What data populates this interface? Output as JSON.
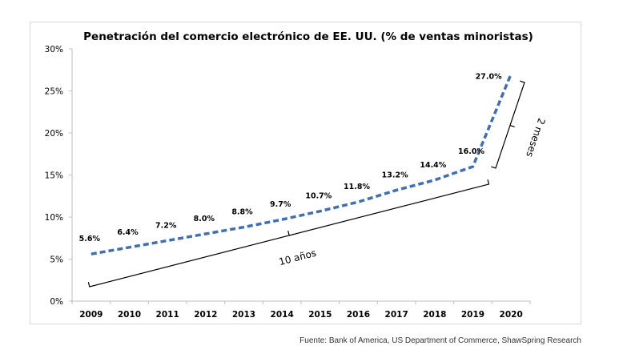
{
  "chart_data": {
    "type": "line",
    "title": "Penetración del comercio electrónico de EE. UU. (% de ventas minoristas)",
    "xlabel": "",
    "ylabel": "",
    "categories": [
      "2009",
      "2010",
      "2011",
      "2012",
      "2013",
      "2014",
      "2015",
      "2016",
      "2017",
      "2018",
      "2019",
      "2020"
    ],
    "series": [
      {
        "values": [
          5.6,
          6.4,
          7.2,
          8.0,
          8.8,
          9.7,
          10.7,
          11.8,
          13.2,
          14.4,
          16.0,
          27.0
        ],
        "labels": [
          "5.6%",
          "6.4%",
          "7.2%",
          "8.0%",
          "8.8%",
          "9.7%",
          "10.7%",
          "11.8%",
          "13.2%",
          "14.4%",
          "16.0%",
          "27.0%"
        ]
      }
    ],
    "ylim": [
      0,
      30
    ],
    "yticks": [
      0,
      5,
      10,
      15,
      20,
      25,
      30
    ],
    "ytick_labels": [
      "0%",
      "5%",
      "10%",
      "15%",
      "20%",
      "25%",
      "30%"
    ],
    "grid": false,
    "line_style": "dashed",
    "line_color": "#3f6fb5",
    "annotations": [
      {
        "text": "10 años",
        "span": [
          "2009",
          "2019"
        ]
      },
      {
        "text": "2 meses",
        "span": [
          "2019",
          "2020"
        ]
      }
    ]
  },
  "source": "Fuente: Bank of America, US Department of Commerce, ShawSpring Research"
}
